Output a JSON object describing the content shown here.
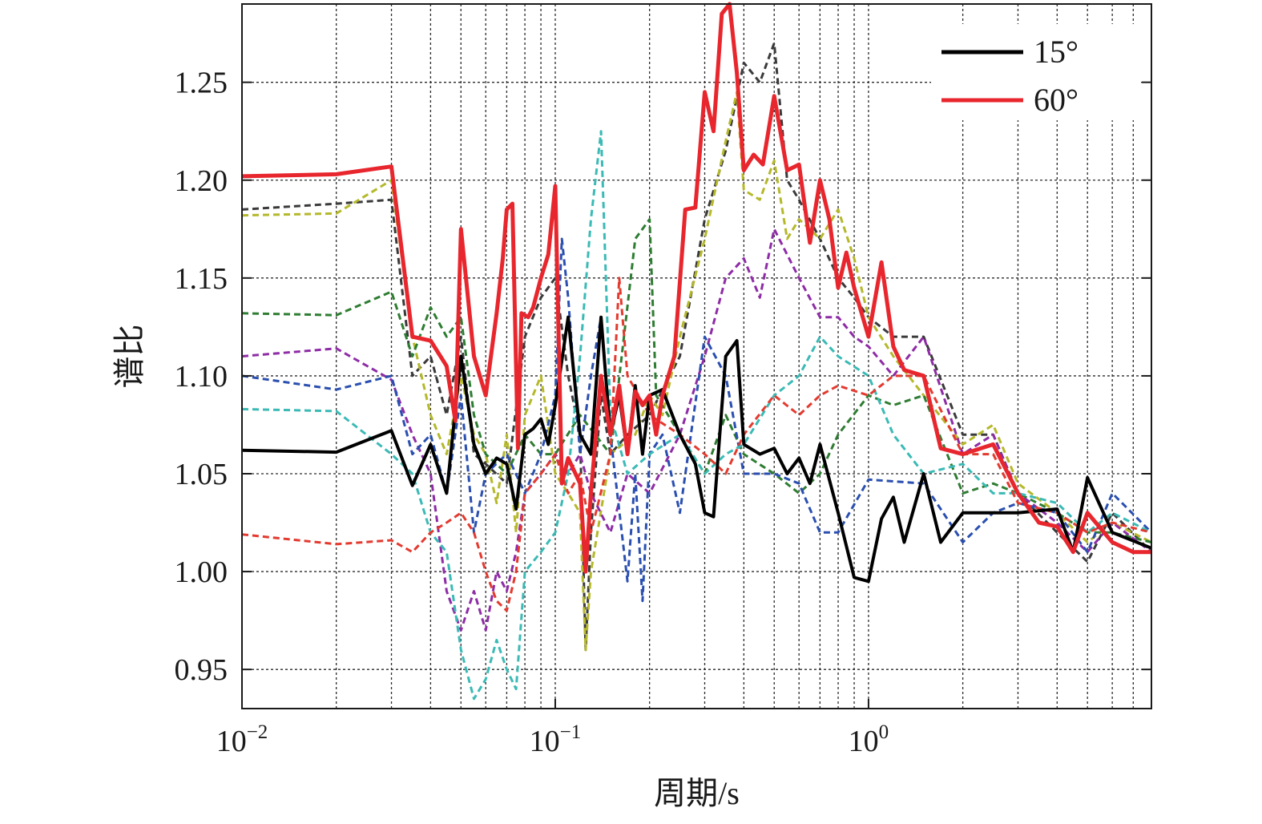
{
  "chart_data": {
    "type": "line",
    "xscale": "log",
    "xlabel": "周期/s",
    "ylabel": "谱比",
    "xlim": [
      0.01,
      8.0
    ],
    "ylim": [
      0.93,
      1.29
    ],
    "x_ticks": [
      {
        "base": "10",
        "exp": "−2",
        "value": 0.01
      },
      {
        "base": "10",
        "exp": "−1",
        "value": 0.1
      },
      {
        "base": "10",
        "exp": "0",
        "value": 1
      }
    ],
    "y_ticks": [
      "0.95",
      "1.00",
      "1.05",
      "1.10",
      "1.15",
      "1.20",
      "1.25"
    ],
    "grid": true,
    "legend": {
      "position": "top-right",
      "entries": [
        {
          "label": "15°",
          "color": "#000000"
        },
        {
          "label": "60°",
          "color": "#e8262d"
        }
      ]
    },
    "series": [
      {
        "name": "15°",
        "color": "#000000",
        "style": "solid",
        "width": 4,
        "x": [
          0.01,
          0.02,
          0.03,
          0.035,
          0.04,
          0.045,
          0.05,
          0.055,
          0.06,
          0.065,
          0.07,
          0.075,
          0.08,
          0.085,
          0.09,
          0.095,
          0.1,
          0.11,
          0.12,
          0.13,
          0.14,
          0.15,
          0.16,
          0.17,
          0.18,
          0.19,
          0.2,
          0.22,
          0.25,
          0.28,
          0.3,
          0.32,
          0.35,
          0.38,
          0.4,
          0.45,
          0.5,
          0.55,
          0.6,
          0.65,
          0.7,
          0.8,
          0.9,
          1.0,
          1.1,
          1.2,
          1.3,
          1.5,
          1.7,
          2.0,
          2.5,
          3.0,
          4.0,
          4.5,
          5.0,
          6.0,
          8.0
        ],
        "y": [
          1.062,
          1.061,
          1.072,
          1.044,
          1.065,
          1.04,
          1.11,
          1.065,
          1.05,
          1.058,
          1.055,
          1.032,
          1.07,
          1.073,
          1.078,
          1.065,
          1.085,
          1.13,
          1.07,
          1.06,
          1.13,
          1.07,
          1.09,
          1.06,
          1.095,
          1.06,
          1.09,
          1.093,
          1.07,
          1.055,
          1.03,
          1.028,
          1.11,
          1.118,
          1.065,
          1.06,
          1.063,
          1.05,
          1.058,
          1.045,
          1.065,
          1.03,
          0.997,
          0.995,
          1.027,
          1.038,
          1.015,
          1.05,
          1.015,
          1.03,
          1.03,
          1.03,
          1.032,
          1.01,
          1.048,
          1.02,
          1.012
        ]
      },
      {
        "name": "60°",
        "color": "#e8262d",
        "style": "solid",
        "width": 5,
        "x": [
          0.01,
          0.02,
          0.03,
          0.035,
          0.04,
          0.045,
          0.048,
          0.05,
          0.055,
          0.06,
          0.065,
          0.068,
          0.07,
          0.073,
          0.076,
          0.078,
          0.082,
          0.085,
          0.09,
          0.095,
          0.1,
          0.105,
          0.11,
          0.12,
          0.125,
          0.13,
          0.14,
          0.15,
          0.16,
          0.17,
          0.18,
          0.19,
          0.2,
          0.21,
          0.22,
          0.24,
          0.26,
          0.28,
          0.3,
          0.32,
          0.34,
          0.36,
          0.38,
          0.4,
          0.43,
          0.46,
          0.5,
          0.55,
          0.6,
          0.65,
          0.7,
          0.75,
          0.8,
          0.85,
          0.9,
          1.0,
          1.1,
          1.2,
          1.3,
          1.5,
          1.7,
          2.0,
          2.5,
          3.0,
          3.5,
          4.0,
          4.5,
          5.0,
          6.0,
          7.0,
          8.0
        ],
        "y": [
          1.202,
          1.203,
          1.207,
          1.12,
          1.118,
          1.105,
          1.077,
          1.175,
          1.11,
          1.09,
          1.132,
          1.16,
          1.185,
          1.188,
          1.063,
          1.132,
          1.13,
          1.135,
          1.15,
          1.162,
          1.197,
          1.045,
          1.058,
          1.045,
          1.0,
          1.04,
          1.1,
          1.07,
          1.095,
          1.06,
          1.092,
          1.085,
          1.09,
          1.07,
          1.09,
          1.11,
          1.185,
          1.186,
          1.245,
          1.225,
          1.285,
          1.29,
          1.255,
          1.205,
          1.213,
          1.208,
          1.243,
          1.205,
          1.208,
          1.168,
          1.2,
          1.18,
          1.145,
          1.163,
          1.145,
          1.12,
          1.158,
          1.115,
          1.103,
          1.1,
          1.063,
          1.06,
          1.065,
          1.04,
          1.025,
          1.023,
          1.01,
          1.03,
          1.015,
          1.01,
          1.01
        ]
      },
      {
        "color": "#3a3a3a",
        "style": "dashed",
        "width": 3,
        "x": [
          0.01,
          0.02,
          0.03,
          0.035,
          0.04,
          0.045,
          0.05,
          0.055,
          0.06,
          0.07,
          0.08,
          0.09,
          0.1,
          0.11,
          0.12,
          0.125,
          0.13,
          0.14,
          0.15,
          0.17,
          0.2,
          0.25,
          0.3,
          0.35,
          0.4,
          0.45,
          0.5,
          0.55,
          0.6,
          0.7,
          0.8,
          0.9,
          1.0,
          1.2,
          1.5,
          2.0,
          2.5,
          3.0,
          4.0,
          5.0,
          6.0,
          8.0
        ],
        "y": [
          1.185,
          1.188,
          1.19,
          1.1,
          1.11,
          1.08,
          1.12,
          1.06,
          1.055,
          1.045,
          1.12,
          1.14,
          1.15,
          1.1,
          1.07,
          0.96,
          1.02,
          1.09,
          1.06,
          1.07,
          1.08,
          1.11,
          1.18,
          1.215,
          1.26,
          1.25,
          1.27,
          1.2,
          1.19,
          1.17,
          1.15,
          1.14,
          1.13,
          1.12,
          1.12,
          1.07,
          1.07,
          1.04,
          1.02,
          1.005,
          1.03,
          1.01
        ]
      },
      {
        "color": "#b5b82a",
        "style": "dashed",
        "width": 3,
        "x": [
          0.01,
          0.02,
          0.03,
          0.035,
          0.04,
          0.045,
          0.05,
          0.055,
          0.06,
          0.065,
          0.07,
          0.075,
          0.08,
          0.09,
          0.1,
          0.11,
          0.12,
          0.125,
          0.13,
          0.15,
          0.18,
          0.2,
          0.22,
          0.25,
          0.3,
          0.35,
          0.38,
          0.4,
          0.45,
          0.5,
          0.55,
          0.6,
          0.7,
          0.8,
          0.9,
          1.0,
          1.2,
          1.5,
          2.0,
          2.5,
          3.0,
          4.0,
          5.0,
          6.0,
          8.0
        ],
        "y": [
          1.182,
          1.183,
          1.2,
          1.12,
          1.08,
          1.06,
          1.1,
          1.07,
          1.06,
          1.035,
          1.07,
          1.02,
          1.08,
          1.1,
          1.05,
          1.04,
          1.03,
          0.96,
          1.0,
          1.06,
          1.07,
          1.09,
          1.08,
          1.12,
          1.17,
          1.22,
          1.245,
          1.195,
          1.19,
          1.21,
          1.17,
          1.18,
          1.17,
          1.185,
          1.16,
          1.13,
          1.11,
          1.09,
          1.065,
          1.075,
          1.045,
          1.03,
          1.015,
          1.025,
          1.015
        ]
      },
      {
        "color": "#2e7d32",
        "style": "dashed",
        "width": 3,
        "x": [
          0.01,
          0.02,
          0.03,
          0.035,
          0.04,
          0.045,
          0.05,
          0.055,
          0.06,
          0.07,
          0.08,
          0.09,
          0.1,
          0.12,
          0.15,
          0.18,
          0.2,
          0.21,
          0.25,
          0.3,
          0.35,
          0.4,
          0.5,
          0.6,
          0.7,
          0.8,
          1.0,
          1.2,
          1.5,
          2.0,
          2.5,
          3.0,
          4.0,
          5.0,
          6.0,
          8.0
        ],
        "y": [
          1.132,
          1.131,
          1.143,
          1.11,
          1.135,
          1.12,
          1.13,
          1.08,
          1.06,
          1.05,
          1.07,
          1.06,
          1.06,
          1.08,
          1.06,
          1.17,
          1.18,
          1.09,
          1.07,
          1.05,
          1.08,
          1.06,
          1.05,
          1.04,
          1.05,
          1.07,
          1.09,
          1.085,
          1.09,
          1.04,
          1.045,
          1.04,
          1.03,
          1.02,
          1.02,
          1.015
        ]
      },
      {
        "color": "#8e2ca6",
        "style": "dashed",
        "width": 3,
        "x": [
          0.01,
          0.02,
          0.03,
          0.035,
          0.04,
          0.045,
          0.05,
          0.055,
          0.06,
          0.065,
          0.07,
          0.075,
          0.08,
          0.09,
          0.1,
          0.11,
          0.12,
          0.13,
          0.15,
          0.17,
          0.2,
          0.25,
          0.3,
          0.35,
          0.4,
          0.45,
          0.5,
          0.6,
          0.7,
          0.8,
          0.9,
          1.0,
          1.2,
          1.5,
          2.0,
          2.5,
          3.0,
          4.0,
          5.0,
          6.0,
          8.0
        ],
        "y": [
          1.11,
          1.114,
          1.098,
          1.07,
          1.05,
          0.99,
          0.97,
          0.99,
          0.97,
          1.0,
          0.99,
          1.01,
          1.04,
          1.05,
          1.06,
          1.05,
          1.06,
          1.04,
          1.02,
          1.05,
          1.04,
          1.07,
          1.11,
          1.15,
          1.16,
          1.14,
          1.175,
          1.15,
          1.13,
          1.13,
          1.12,
          1.115,
          1.1,
          1.12,
          1.06,
          1.07,
          1.04,
          1.025,
          1.01,
          1.025,
          1.01
        ]
      },
      {
        "color": "#2a4fb0",
        "style": "dashed",
        "width": 3,
        "x": [
          0.01,
          0.02,
          0.03,
          0.035,
          0.04,
          0.045,
          0.05,
          0.055,
          0.06,
          0.07,
          0.08,
          0.09,
          0.1,
          0.105,
          0.11,
          0.12,
          0.13,
          0.14,
          0.15,
          0.17,
          0.18,
          0.19,
          0.2,
          0.22,
          0.25,
          0.3,
          0.35,
          0.4,
          0.5,
          0.6,
          0.7,
          0.8,
          1.0,
          1.5,
          2.0,
          2.5,
          3.0,
          4.0,
          5.0,
          6.0,
          8.0
        ],
        "y": [
          1.1,
          1.093,
          1.1,
          1.06,
          1.07,
          1.04,
          1.09,
          1.02,
          1.05,
          1.06,
          1.04,
          1.06,
          1.09,
          1.17,
          1.14,
          1.06,
          1.1,
          1.13,
          1.07,
          0.995,
          1.05,
          0.985,
          1.06,
          1.07,
          1.03,
          1.12,
          1.1,
          1.05,
          1.05,
          1.045,
          1.02,
          1.02,
          1.047,
          1.045,
          1.015,
          1.03,
          1.035,
          1.03,
          1.01,
          1.04,
          1.02
        ]
      },
      {
        "color": "#3bbab5",
        "style": "dashed",
        "width": 3,
        "x": [
          0.01,
          0.02,
          0.03,
          0.035,
          0.04,
          0.045,
          0.05,
          0.055,
          0.06,
          0.065,
          0.07,
          0.075,
          0.08,
          0.09,
          0.1,
          0.11,
          0.12,
          0.13,
          0.14,
          0.15,
          0.17,
          0.2,
          0.25,
          0.3,
          0.35,
          0.4,
          0.5,
          0.6,
          0.7,
          0.8,
          1.0,
          1.2,
          1.5,
          2.0,
          2.5,
          3.0,
          4.0,
          5.0,
          6.0,
          8.0
        ],
        "y": [
          1.083,
          1.082,
          1.06,
          1.05,
          1.02,
          1.01,
          0.96,
          0.935,
          0.945,
          0.965,
          0.95,
          0.94,
          1.0,
          1.01,
          1.02,
          1.05,
          1.11,
          1.18,
          1.225,
          1.08,
          1.05,
          1.06,
          1.07,
          1.05,
          1.06,
          1.065,
          1.09,
          1.1,
          1.12,
          1.11,
          1.1,
          1.07,
          1.05,
          1.055,
          1.04,
          1.04,
          1.035,
          1.02,
          1.03,
          1.02
        ]
      },
      {
        "color": "#e33a2f",
        "style": "dashed",
        "width": 3,
        "x": [
          0.01,
          0.02,
          0.03,
          0.035,
          0.04,
          0.045,
          0.05,
          0.055,
          0.06,
          0.065,
          0.07,
          0.075,
          0.08,
          0.09,
          0.1,
          0.11,
          0.12,
          0.13,
          0.15,
          0.16,
          0.17,
          0.2,
          0.25,
          0.3,
          0.35,
          0.4,
          0.5,
          0.6,
          0.7,
          0.8,
          1.0,
          1.2,
          1.5,
          2.0,
          2.5,
          3.0,
          4.0,
          5.0,
          6.0,
          8.0
        ],
        "y": [
          1.019,
          1.014,
          1.016,
          1.01,
          1.02,
          1.025,
          1.03,
          1.02,
          1.0,
          0.985,
          0.98,
          1.0,
          1.04,
          1.05,
          1.06,
          1.04,
          1.05,
          1.02,
          1.06,
          1.15,
          1.1,
          1.08,
          1.07,
          1.06,
          1.05,
          1.07,
          1.09,
          1.08,
          1.09,
          1.095,
          1.09,
          1.1,
          1.1,
          1.06,
          1.06,
          1.035,
          1.03,
          1.02,
          1.025,
          1.02
        ]
      }
    ]
  }
}
